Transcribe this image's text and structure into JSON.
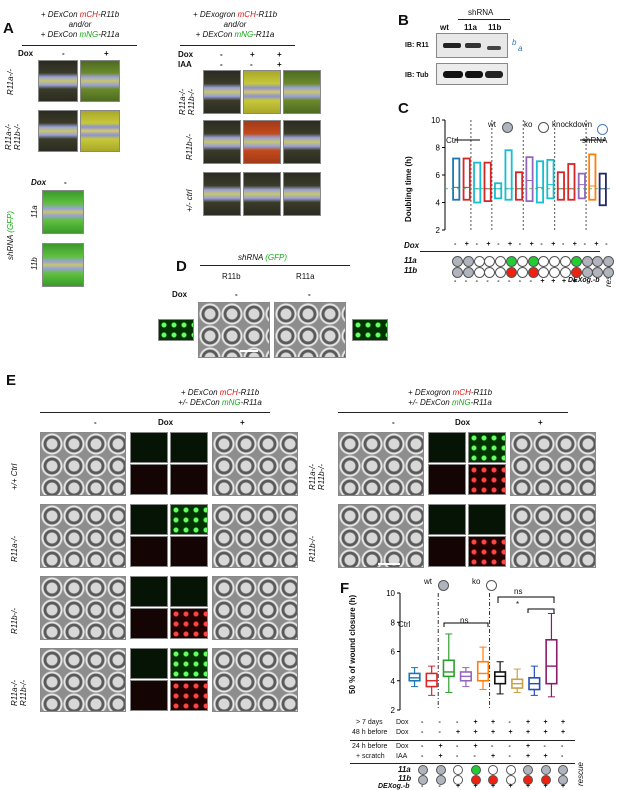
{
  "panel_labels": {
    "a": "A",
    "b": "B",
    "c": "C",
    "d": "D",
    "e": "E",
    "f": "F"
  },
  "panelA": {
    "left_header": {
      "pre": "+ DExCon ",
      "gene1": "mCH",
      "post1": "-R11b",
      "mid": "and/or",
      "pre2": "+ DExCon ",
      "gene2": "mNG",
      "post2": "-R11a"
    },
    "right_header": {
      "pre": "+ DExogron ",
      "gene1": "mCH",
      "post1": "-R11b",
      "mid": "and/or",
      "pre2": "+ DExCon ",
      "gene2": "mNG",
      "post2": "-R11a"
    },
    "dox_label": "Dox",
    "iaa_label": "IAA",
    "minus": "-",
    "plus": "+",
    "left_rows": [
      "R11a-/-",
      "R11a-/-\nR11b-/-"
    ],
    "right_rows": [
      "R11a-/-\nR11b-/-",
      "R11b-/-",
      "+/- ctrl"
    ],
    "shrna_label": "shRNA",
    "gfp_label": "(GFP)",
    "shrna_rows": [
      "11a",
      "11b"
    ]
  },
  "panelB": {
    "header": "shRNA",
    "lanes": [
      "wt",
      "11a",
      "11b"
    ],
    "blots": [
      "IB: R11",
      "IB: Tub"
    ],
    "bands": [
      "b",
      "a"
    ]
  },
  "panelC": {
    "legend": {
      "wt": "wt",
      "ko": "ko",
      "knockdown": "knockdown"
    },
    "ctrl": "Ctrl",
    "shrna": "shRNA",
    "ylabel": "Doubling time (h)",
    "yticks": [
      "2",
      "4",
      "6",
      "8",
      "10"
    ],
    "dox_row_label": "Dox",
    "row_labels": [
      "11a",
      "11b",
      "DEXog.-b"
    ],
    "rescue": "rescue"
  },
  "panelD": {
    "title_pre": "shRNA ",
    "title_gfp": "(GFP)",
    "cols": [
      "R11b",
      "R11a"
    ],
    "dox_label": "Dox",
    "dox_vals": [
      "-",
      "-"
    ]
  },
  "panelE": {
    "left_header": {
      "pre": "+ DExCon ",
      "gene1": "mCH",
      "post1": "-R11b",
      "pre2": "+/- DExCon ",
      "gene2": "mNG",
      "post2": "-R11a"
    },
    "right_header": {
      "pre": "+ DExogron ",
      "gene1": "mCH",
      "post1": "-R11b",
      "pre2": "+/- DExCon ",
      "gene2": "mNG",
      "post2": "-R11a"
    },
    "cond": [
      "-",
      "Dox",
      "+"
    ],
    "left_rows": [
      "+/+ Ctrl",
      "R11a-/-",
      "R11b-/-",
      "R11a-/-\nR11b-/-"
    ],
    "right_rows": [
      "R11a-/-\nR11b-/-",
      "R11b-/-"
    ]
  },
  "panelF": {
    "legend": {
      "wt": "wt",
      "ko": "ko"
    },
    "ctrl": "Ctrl",
    "ns1": "ns",
    "ns2": "ns",
    "star": "*",
    "ylabel": "50 % of wound closure (h)",
    "yticks": [
      "2",
      "4",
      "6",
      "8",
      "10"
    ],
    "row_labels": [
      "> 7 days",
      "48 h before",
      "24 h before",
      "+ scratch"
    ],
    "cond_labels": [
      "Dox",
      "Dox",
      "Dox",
      "IAA"
    ],
    "gene_rows": [
      "11a",
      "11b",
      "DEXog.-b"
    ],
    "rescue": "rescue"
  },
  "chart_data": [
    {
      "type": "box",
      "title": "",
      "ylabel": "Doubling time (h)",
      "ylim": [
        2,
        10
      ],
      "series": [
        {
          "low": 4.2,
          "median": 5.1,
          "high": 7.2
        },
        {
          "low": 4.2,
          "median": 5.1,
          "high": 7.2
        },
        {
          "low": 4.0,
          "median": 5.0,
          "high": 6.9
        },
        {
          "low": 4.1,
          "median": 5.0,
          "high": 6.9
        },
        {
          "low": 4.3,
          "median": 5.0,
          "high": 5.4
        },
        {
          "low": 4.2,
          "median": 5.0,
          "high": 7.8
        },
        {
          "low": 4.2,
          "median": 5.0,
          "high": 6.2
        },
        {
          "low": 4.1,
          "median": 5.6,
          "high": 7.3
        },
        {
          "low": 4.0,
          "median": 5.1,
          "high": 7.0
        },
        {
          "low": 4.3,
          "median": 5.3,
          "high": 7.1
        },
        {
          "low": 4.2,
          "median": 5.0,
          "high": 6.2
        },
        {
          "low": 4.2,
          "median": 5.0,
          "high": 6.8
        },
        {
          "low": 4.3,
          "median": 5.3,
          "high": 6.1
        },
        {
          "low": 4.2,
          "median": 5.2,
          "high": 7.5
        },
        {
          "low": 3.8,
          "median": 5.0,
          "high": 6.1
        }
      ]
    },
    {
      "type": "box",
      "title": "",
      "ylabel": "50 % of wound closure (h)",
      "ylim": [
        2,
        10
      ],
      "series": [
        {
          "min": 3.6,
          "q1": 4.0,
          "median": 4.2,
          "q3": 4.5,
          "max": 4.9
        },
        {
          "min": 3.0,
          "q1": 3.6,
          "median": 4.0,
          "q3": 4.5,
          "max": 5.0
        },
        {
          "min": 3.2,
          "q1": 4.3,
          "median": 4.6,
          "q3": 5.4,
          "max": 7.2
        },
        {
          "min": 3.6,
          "q1": 4.0,
          "median": 4.3,
          "q3": 4.6,
          "max": 4.9
        },
        {
          "min": 3.4,
          "q1": 4.0,
          "median": 4.5,
          "q3": 5.3,
          "max": 6.3
        },
        {
          "min": 3.1,
          "q1": 3.8,
          "median": 4.3,
          "q3": 4.6,
          "max": 5.3
        },
        {
          "min": 3.2,
          "q1": 3.5,
          "median": 3.8,
          "q3": 4.1,
          "max": 4.8
        },
        {
          "min": 3.0,
          "q1": 3.4,
          "median": 3.8,
          "q3": 4.2,
          "max": 5.0
        },
        {
          "min": 2.9,
          "q1": 3.8,
          "median": 5.0,
          "q3": 6.8,
          "max": 8.6
        }
      ]
    }
  ]
}
